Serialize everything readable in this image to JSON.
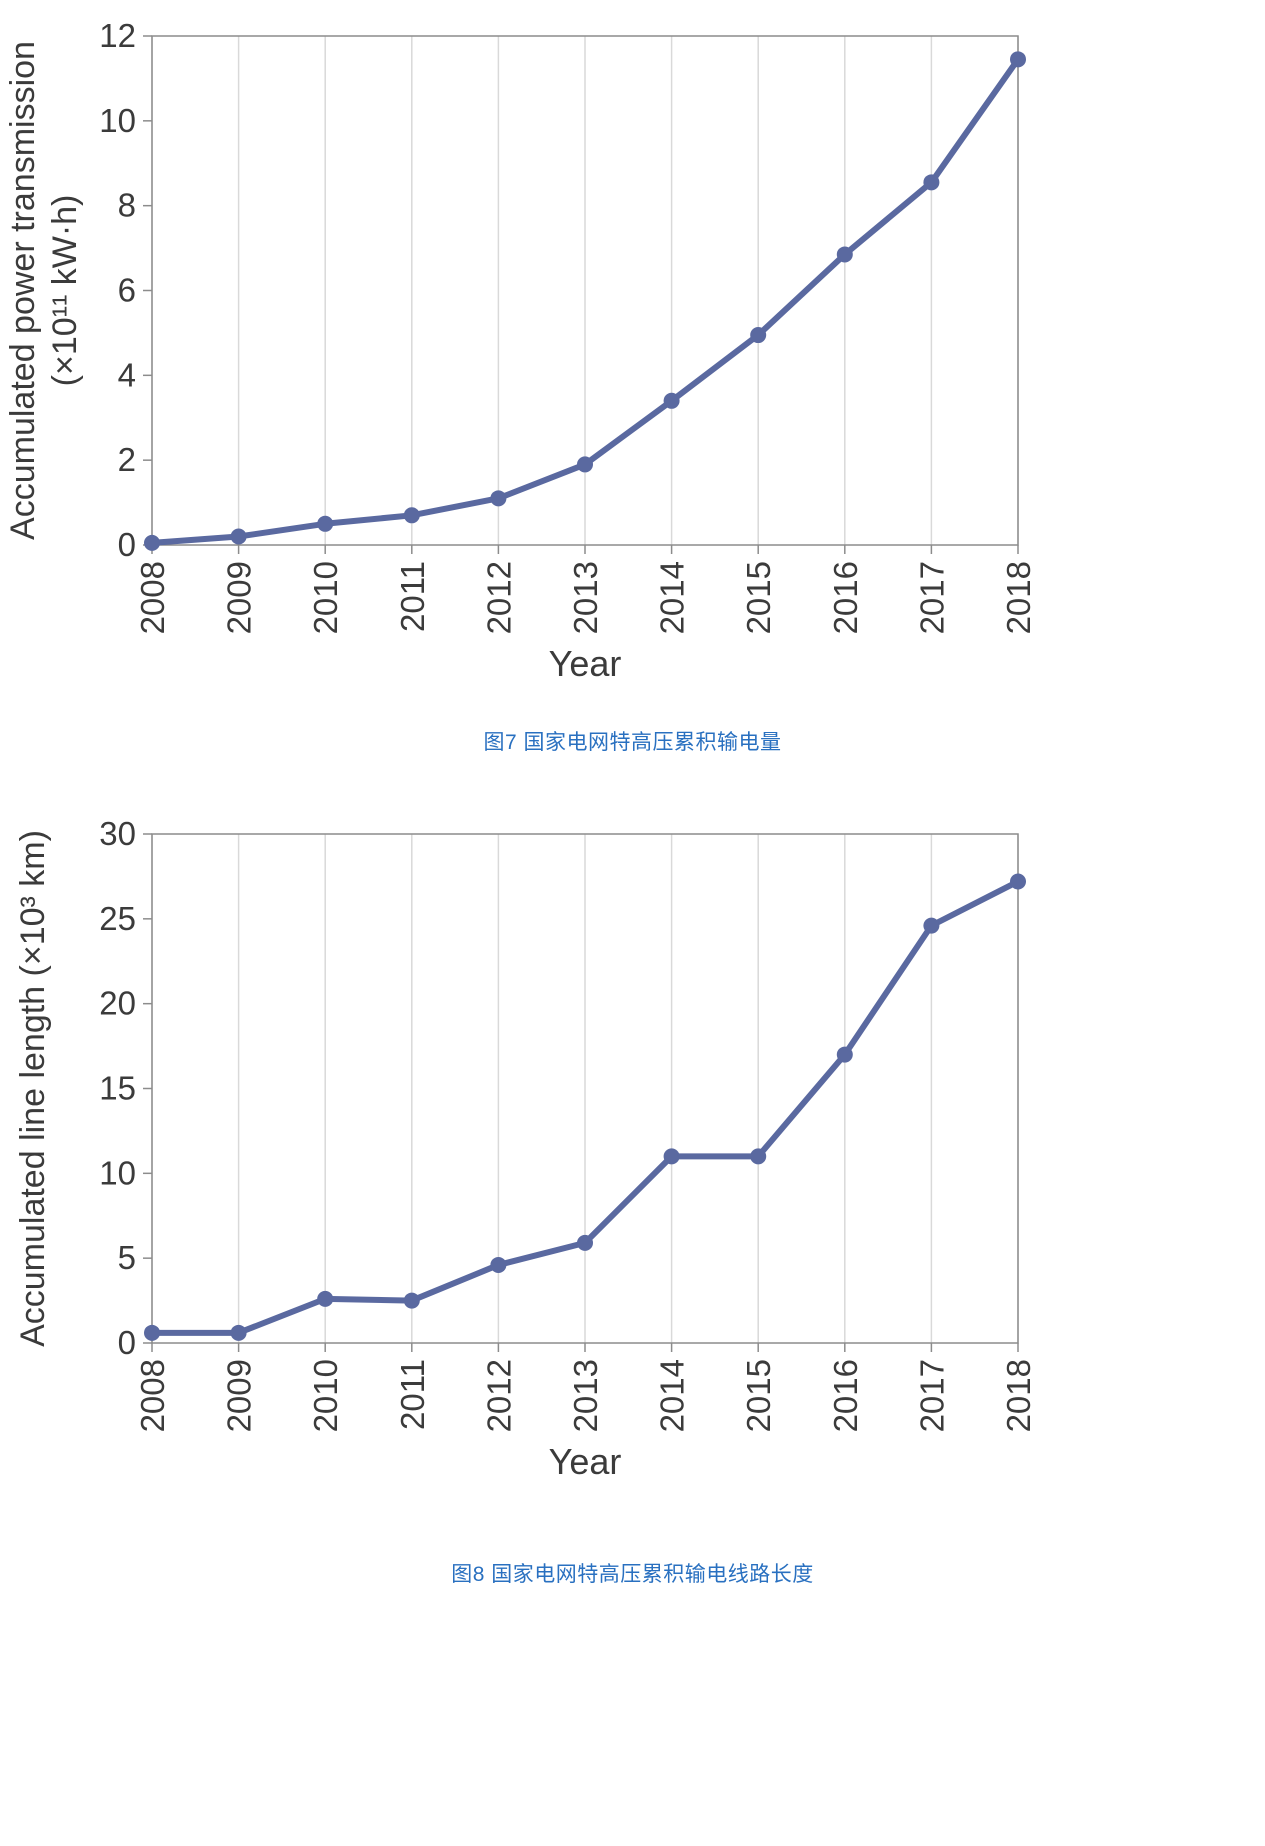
{
  "page": {
    "background": "#ffffff"
  },
  "colors": {
    "line": "#5a69a0",
    "marker": "#5a69a0",
    "grid": "#d9d9d9",
    "axis": "#8c8c8c",
    "tick_text": "#3b3b3b",
    "caption": "#2970c0"
  },
  "captions": {
    "fig7": "图7  国家电网特高压累积输电量",
    "fig8": "图8  国家电网特高压累积输电线路长度"
  },
  "chart_data": [
    {
      "type": "line",
      "title": "",
      "x": [
        "2008",
        "2009",
        "2010",
        "2011",
        "2012",
        "2013",
        "2014",
        "2015",
        "2016",
        "2017",
        "2018"
      ],
      "values": [
        0.05,
        0.2,
        0.5,
        0.7,
        1.1,
        1.9,
        3.4,
        4.95,
        6.85,
        8.55,
        11.45
      ],
      "xlabel": "Year",
      "ylabel": "Accumulated power transmission (×10¹¹ kW·h)",
      "ylabel_lines": [
        "Accumulated power transmission",
        "(×10¹¹ kW·h)"
      ],
      "ylim": [
        0,
        12
      ],
      "yticks": [
        0,
        2,
        4,
        6,
        8,
        10,
        12
      ],
      "grid": "vertical-only",
      "legend": "none",
      "marker": "circle"
    },
    {
      "type": "line",
      "title": "",
      "x": [
        "2008",
        "2009",
        "2010",
        "2011",
        "2012",
        "2013",
        "2014",
        "2015",
        "2016",
        "2017",
        "2018"
      ],
      "values": [
        0.6,
        0.6,
        2.6,
        2.5,
        4.6,
        5.9,
        11.0,
        11.0,
        17.0,
        24.6,
        27.2
      ],
      "xlabel": "Year",
      "ylabel": "Accumulated line length (×10³ km)",
      "ylabel_lines": [
        "Accumulated line length (×10³ km)"
      ],
      "ylim": [
        0,
        30
      ],
      "yticks": [
        0,
        5,
        10,
        15,
        20,
        25,
        30
      ],
      "grid": "vertical-only",
      "legend": "none",
      "marker": "circle"
    }
  ]
}
